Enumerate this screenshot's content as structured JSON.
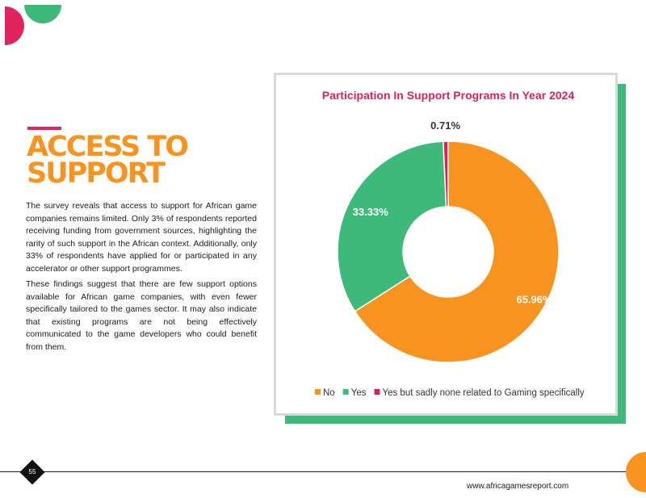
{
  "page": {
    "heading_line1": "ACCESS TO",
    "heading_line2": "SUPPORT",
    "paragraph1": "The survey reveals that access to support for African game companies remains limited. Only 3% of respondents reported receiving funding from government sources, highlighting the rarity of such support in the African context. Additionally, only 33% of respondents have applied for or participated in any accelerator or other support programmes.",
    "paragraph2": "These findings suggest that there are few support options available for African game companies, with even fewer specifically tailored to the games sector. It may also indicate that existing programs are not being effectively communicated to the game developers who could benefit from them.",
    "page_number": "55",
    "website": "www.africagamesreport.com"
  },
  "colors": {
    "orange": "#f7931e",
    "green": "#3dba7a",
    "crimson": "#d6245a",
    "magenta": "#e0245e"
  },
  "chart_data": {
    "type": "pie",
    "donut": true,
    "title": "Participation In Support Programs In Year 2024",
    "legend_position": "bottom",
    "series": [
      {
        "name": "No",
        "value": 65.96,
        "label": "65.96%",
        "color": "#f7931e"
      },
      {
        "name": "Yes",
        "value": 33.33,
        "label": "33.33%",
        "color": "#3dba7a"
      },
      {
        "name": "Yes but sadly none related to Gaming specifically",
        "value": 0.71,
        "label": "0.71%",
        "color": "#d6245a"
      }
    ]
  }
}
